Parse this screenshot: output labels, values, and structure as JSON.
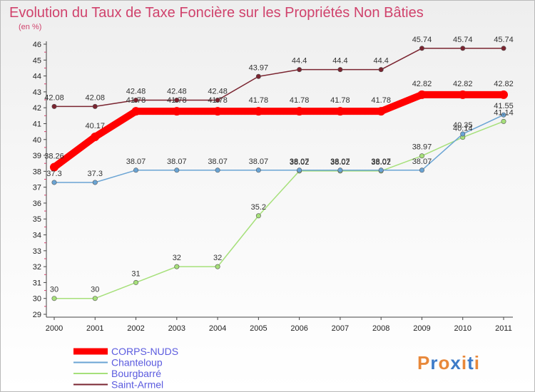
{
  "chart_data": {
    "type": "line",
    "title": "Evolution du Taux de Taxe Foncière sur les Propriétés Non Bâties",
    "subtitle": "(en %)",
    "xlabel": "",
    "ylabel": "(en %)",
    "x": [
      "2000",
      "2001",
      "2002",
      "2003",
      "2004",
      "2005",
      "2006",
      "2007",
      "2008",
      "2009",
      "2010",
      "2011"
    ],
    "ylim": [
      29,
      46
    ],
    "yticks": [
      29,
      30,
      31,
      32,
      33,
      34,
      35,
      36,
      37,
      38,
      39,
      40,
      41,
      42,
      43,
      44,
      45,
      46
    ],
    "grid": false,
    "legend_position": "bottom-left",
    "series": [
      {
        "name": "Saint-Armel",
        "color": "#7a2430",
        "values": [
          42.08,
          42.08,
          42.48,
          42.48,
          42.48,
          43.97,
          44.4,
          44.4,
          44.4,
          45.74,
          45.74,
          45.74
        ],
        "labels": [
          "42.08",
          "42.08",
          "42.48",
          "42.48",
          "42.48",
          "43.97",
          "44.4",
          "44.4",
          "44.4",
          "45.74",
          "45.74",
          "45.74"
        ]
      },
      {
        "name": "Bourgbarré",
        "color": "#a6e07a",
        "values": [
          30,
          30,
          31,
          32,
          32,
          35.2,
          38.02,
          38.02,
          38.02,
          38.97,
          40.14,
          41.14
        ],
        "labels": [
          "30",
          "30",
          "31",
          "32",
          "32",
          "35.2",
          "38.02",
          "38.02",
          "38.02",
          "38.97",
          "40.14",
          "41.14"
        ]
      },
      {
        "name": "Chanteloup",
        "color": "#6aa4d4",
        "values": [
          37.3,
          37.3,
          38.07,
          38.07,
          38.07,
          38.07,
          38.07,
          38.07,
          38.07,
          38.07,
          40.35,
          41.55
        ],
        "labels": [
          "37.3",
          "37.3",
          "38.07",
          "38.07",
          "38.07",
          "38.07",
          "38.07",
          "38.07",
          "38.07",
          "38.07",
          "40.35",
          "41.55"
        ]
      },
      {
        "name": "CORPS-NUDS",
        "color": "#ff0000",
        "values": [
          38.26,
          40.17,
          41.78,
          41.78,
          41.78,
          41.78,
          41.78,
          41.78,
          41.78,
          42.82,
          42.82,
          42.82
        ],
        "labels": [
          "38.26",
          "40.17",
          "41.78",
          "41.78",
          "41.78",
          "41.78",
          "41.78",
          "41.78",
          "41.78",
          "42.82",
          "42.82",
          "42.82"
        ]
      }
    ],
    "legend": [
      "CORPS-NUDS",
      "Chanteloup",
      "Bourgbarré",
      "Saint-Armel"
    ]
  },
  "legend_text_color": "#5b5bdf",
  "logo": {
    "text": "Proxiti",
    "letters": [
      "P",
      "r",
      "o",
      "x",
      "i",
      "t",
      "i"
    ],
    "colors": [
      "#e8883a",
      "#3d7bc8",
      "#e8883a",
      "#3d7bc8",
      "#e8883a",
      "#3d7bc8",
      "#e8883a"
    ]
  }
}
